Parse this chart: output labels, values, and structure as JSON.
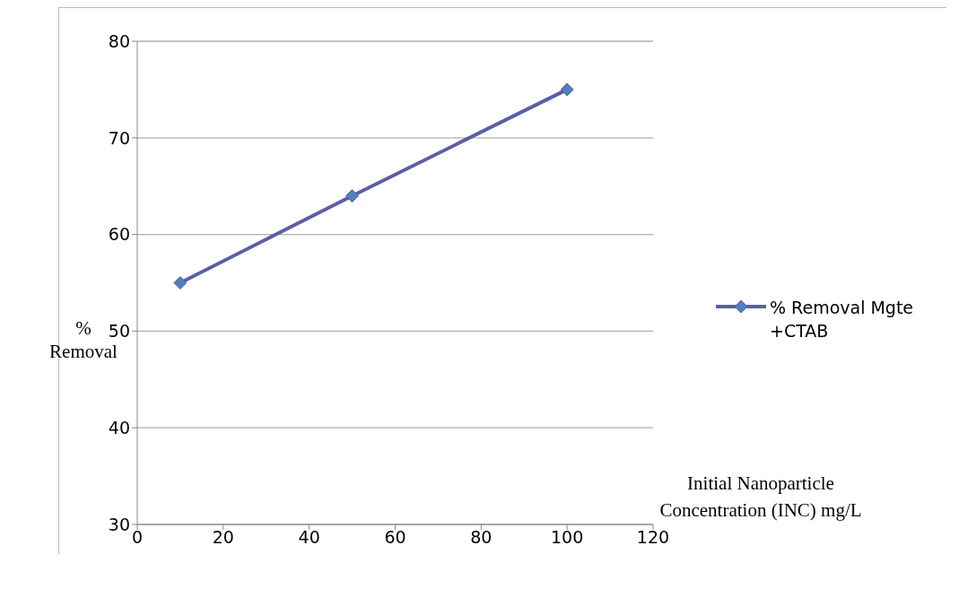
{
  "chart_data": {
    "type": "line",
    "xlabel": "Initial Nanoparticle Concentration (INC) mg/L",
    "ylabel": "% Removal",
    "x": [
      10,
      50,
      100
    ],
    "series": [
      {
        "name": "% Removal Mgte +CTAB",
        "color": "#5b5ea6",
        "values": [
          55,
          64,
          75
        ]
      }
    ],
    "xlim": [
      0,
      120
    ],
    "xticks": [
      0,
      20,
      40,
      60,
      80,
      100,
      120
    ],
    "ylim": [
      30,
      80
    ],
    "yticks": [
      30,
      40,
      50,
      60,
      70,
      80
    ],
    "grid": "y",
    "legend": "right",
    "marker": "diamond",
    "line_style": "solid"
  }
}
